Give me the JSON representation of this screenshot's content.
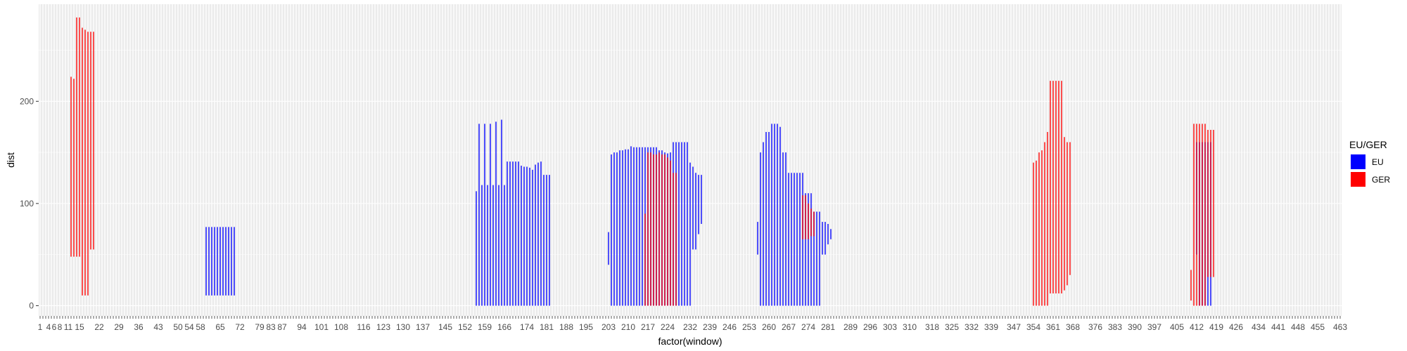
{
  "chart_data": {
    "type": "bar",
    "subtype": "vertical-range-segments",
    "x_title": "factor(window)",
    "y_title": "dist",
    "y_range": [
      -10,
      295
    ],
    "y_ticks": [
      0,
      100,
      200
    ],
    "x_levels": 463,
    "x_tick_labels": [
      1,
      4,
      6,
      8,
      11,
      15,
      22,
      29,
      36,
      43,
      50,
      54,
      58,
      65,
      72,
      79,
      83,
      87,
      94,
      101,
      108,
      116,
      123,
      130,
      137,
      145,
      152,
      159,
      166,
      174,
      181,
      188,
      195,
      203,
      210,
      217,
      224,
      232,
      239,
      246,
      253,
      260,
      267,
      274,
      281,
      289,
      296,
      303,
      310,
      318,
      325,
      332,
      339,
      347,
      354,
      361,
      368,
      376,
      383,
      390,
      397,
      405,
      412,
      419,
      426,
      434,
      441,
      448,
      455,
      463
    ],
    "legend": {
      "title": "EU/GER",
      "position": "right"
    },
    "series": [
      {
        "name": "EU",
        "color": "#0000FF",
        "segments": [
          [
            60,
            10,
            77
          ],
          [
            61,
            10,
            77
          ],
          [
            62,
            10,
            77
          ],
          [
            63,
            10,
            77
          ],
          [
            64,
            10,
            77
          ],
          [
            65,
            10,
            77
          ],
          [
            66,
            10,
            77
          ],
          [
            67,
            10,
            77
          ],
          [
            68,
            10,
            77
          ],
          [
            69,
            10,
            77
          ],
          [
            70,
            10,
            77
          ],
          [
            156,
            0,
            112
          ],
          [
            157,
            0,
            178
          ],
          [
            158,
            0,
            118
          ],
          [
            159,
            0,
            178
          ],
          [
            160,
            0,
            118
          ],
          [
            161,
            0,
            178
          ],
          [
            162,
            0,
            118
          ],
          [
            163,
            0,
            180
          ],
          [
            164,
            0,
            118
          ],
          [
            165,
            0,
            182
          ],
          [
            166,
            0,
            118
          ],
          [
            167,
            0,
            141
          ],
          [
            168,
            0,
            141
          ],
          [
            169,
            0,
            141
          ],
          [
            170,
            0,
            141
          ],
          [
            171,
            0,
            141
          ],
          [
            172,
            0,
            137
          ],
          [
            173,
            0,
            136
          ],
          [
            174,
            0,
            136
          ],
          [
            175,
            0,
            135
          ],
          [
            176,
            0,
            133
          ],
          [
            177,
            0,
            138
          ],
          [
            178,
            0,
            140
          ],
          [
            179,
            0,
            141
          ],
          [
            180,
            0,
            128
          ],
          [
            181,
            0,
            128
          ],
          [
            182,
            0,
            128
          ],
          [
            203,
            40,
            72
          ],
          [
            204,
            0,
            148
          ],
          [
            205,
            0,
            150
          ],
          [
            206,
            0,
            150
          ],
          [
            207,
            0,
            152
          ],
          [
            208,
            0,
            152
          ],
          [
            209,
            0,
            153
          ],
          [
            210,
            0,
            153
          ],
          [
            211,
            0,
            156
          ],
          [
            212,
            0,
            155
          ],
          [
            213,
            0,
            155
          ],
          [
            214,
            0,
            155
          ],
          [
            215,
            0,
            155
          ],
          [
            216,
            0,
            155
          ],
          [
            217,
            0,
            155
          ],
          [
            218,
            0,
            155
          ],
          [
            219,
            0,
            155
          ],
          [
            220,
            0,
            155
          ],
          [
            221,
            0,
            152
          ],
          [
            222,
            0,
            152
          ],
          [
            223,
            0,
            150
          ],
          [
            224,
            0,
            149
          ],
          [
            225,
            0,
            150
          ],
          [
            226,
            0,
            160
          ],
          [
            227,
            0,
            160
          ],
          [
            228,
            0,
            160
          ],
          [
            229,
            0,
            160
          ],
          [
            230,
            0,
            160
          ],
          [
            231,
            0,
            160
          ],
          [
            232,
            0,
            140
          ],
          [
            233,
            55,
            136
          ],
          [
            234,
            55,
            130
          ],
          [
            235,
            70,
            128
          ],
          [
            236,
            80,
            128
          ],
          [
            256,
            50,
            82
          ],
          [
            257,
            0,
            150
          ],
          [
            258,
            0,
            160
          ],
          [
            259,
            0,
            170
          ],
          [
            260,
            0,
            170
          ],
          [
            261,
            0,
            178
          ],
          [
            262,
            0,
            178
          ],
          [
            263,
            0,
            178
          ],
          [
            264,
            0,
            175
          ],
          [
            265,
            0,
            150
          ],
          [
            266,
            0,
            150
          ],
          [
            267,
            0,
            130
          ],
          [
            268,
            0,
            130
          ],
          [
            269,
            0,
            130
          ],
          [
            270,
            0,
            130
          ],
          [
            271,
            0,
            130
          ],
          [
            272,
            0,
            130
          ],
          [
            273,
            0,
            110
          ],
          [
            274,
            0,
            110
          ],
          [
            275,
            0,
            110
          ],
          [
            276,
            0,
            92
          ],
          [
            277,
            0,
            92
          ],
          [
            278,
            0,
            92
          ],
          [
            279,
            50,
            82
          ],
          [
            280,
            50,
            82
          ],
          [
            281,
            60,
            80
          ],
          [
            282,
            65,
            75
          ],
          [
            412,
            50,
            160
          ],
          [
            413,
            0,
            160
          ],
          [
            414,
            0,
            160
          ],
          [
            415,
            0,
            160
          ],
          [
            416,
            0,
            160
          ],
          [
            417,
            0,
            160
          ]
        ]
      },
      {
        "name": "GER",
        "color": "#FF0000",
        "segments": [
          [
            12,
            48,
            224
          ],
          [
            13,
            48,
            222
          ],
          [
            14,
            48,
            282
          ],
          [
            15,
            48,
            282
          ],
          [
            16,
            10,
            272
          ],
          [
            17,
            10,
            270
          ],
          [
            18,
            10,
            268
          ],
          [
            19,
            55,
            268
          ],
          [
            20,
            55,
            268
          ],
          [
            216,
            0,
            90
          ],
          [
            217,
            0,
            150
          ],
          [
            218,
            0,
            150
          ],
          [
            219,
            0,
            148
          ],
          [
            220,
            0,
            148
          ],
          [
            221,
            0,
            150
          ],
          [
            222,
            0,
            148
          ],
          [
            223,
            0,
            148
          ],
          [
            224,
            0,
            145
          ],
          [
            225,
            0,
            142
          ],
          [
            226,
            0,
            130
          ],
          [
            227,
            0,
            130
          ],
          [
            272,
            65,
            108
          ],
          [
            273,
            65,
            108
          ],
          [
            274,
            65,
            100
          ],
          [
            275,
            68,
            95
          ],
          [
            276,
            68,
            92
          ],
          [
            354,
            0,
            140
          ],
          [
            355,
            0,
            142
          ],
          [
            356,
            0,
            150
          ],
          [
            357,
            0,
            152
          ],
          [
            358,
            0,
            160
          ],
          [
            359,
            0,
            170
          ],
          [
            360,
            12,
            220
          ],
          [
            361,
            12,
            220
          ],
          [
            362,
            12,
            220
          ],
          [
            363,
            12,
            220
          ],
          [
            364,
            12,
            220
          ],
          [
            365,
            15,
            165
          ],
          [
            366,
            20,
            160
          ],
          [
            367,
            30,
            160
          ],
          [
            410,
            5,
            35
          ],
          [
            411,
            0,
            178
          ],
          [
            412,
            0,
            178
          ],
          [
            413,
            0,
            178
          ],
          [
            414,
            0,
            178
          ],
          [
            415,
            0,
            178
          ],
          [
            416,
            28,
            172
          ],
          [
            417,
            28,
            172
          ],
          [
            418,
            28,
            172
          ]
        ]
      }
    ]
  }
}
